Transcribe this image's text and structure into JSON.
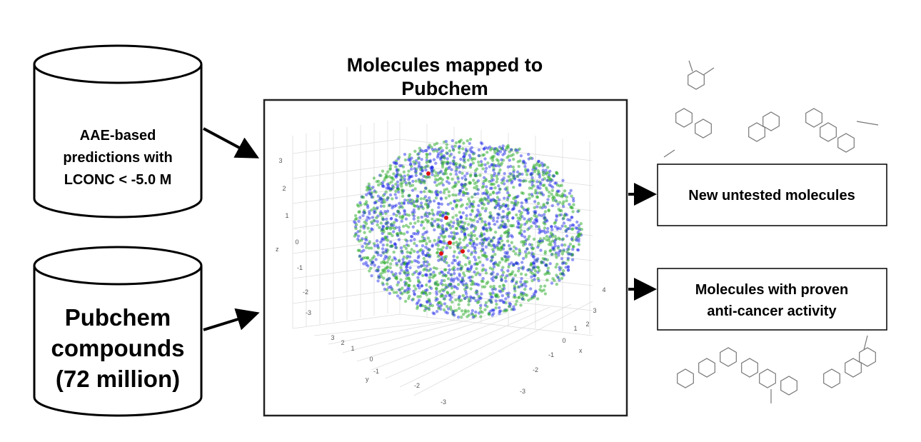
{
  "title": {
    "lines": [
      "Molecules mapped to",
      "Pubchem"
    ]
  },
  "sources": [
    {
      "lines": [
        "AAE-based",
        "predictions with",
        "LCONC < -5.0 M"
      ]
    },
    {
      "lines": [
        "Pubchem",
        "compounds",
        "(72 million)"
      ]
    }
  ],
  "outputs": [
    {
      "lines": [
        "New untested molecules"
      ]
    },
    {
      "lines": [
        "Molecules with proven",
        "anti-cancer activity"
      ]
    }
  ],
  "plot": {
    "z_axis": {
      "label": "z",
      "ticks": [
        "3",
        "2",
        "1",
        "0",
        "-1",
        "-2",
        "-3"
      ]
    },
    "y_axis": {
      "label": "y",
      "ticks": [
        "3",
        "2",
        "1",
        "0",
        "-1",
        "-2",
        "-3"
      ]
    },
    "x_axis": {
      "label": "x",
      "ticks": [
        "4",
        "3",
        "2",
        "1",
        "0",
        "-1",
        "-2",
        "-3"
      ]
    }
  }
}
